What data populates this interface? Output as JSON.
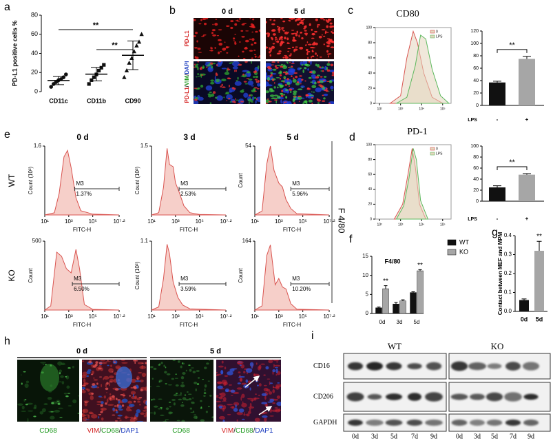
{
  "panel_labels": [
    "a",
    "b",
    "c",
    "d",
    "e",
    "f",
    "g",
    "h",
    "i"
  ],
  "panel_b": {
    "columns": [
      "0 d",
      "5 d"
    ],
    "rows": [
      [
        {
          "text": "PD-L1",
          "color": "#d42020"
        }
      ],
      [
        {
          "text": "PD-L1",
          "color": "#d42020"
        },
        {
          "text": "/",
          "color": "#222222"
        },
        {
          "text": "VIM",
          "color": "#1f9a1f"
        },
        {
          "text": "/",
          "color": "#222222"
        },
        {
          "text": "DAPI",
          "color": "#2040c0"
        }
      ]
    ]
  },
  "panel_e": {
    "columns": [
      "0 d",
      "3 d",
      "5 d"
    ],
    "rows": [
      "WT",
      "KO"
    ],
    "side_label": "F 4/80"
  },
  "panel_h": {
    "columns": [
      "0 d",
      "5 d"
    ],
    "image_labels": [
      [
        {
          "text": "CD68",
          "color": "#1f9a1f"
        }
      ],
      [
        {
          "text": "VIM",
          "color": "#d42020"
        },
        {
          "text": "/",
          "color": "#222222"
        },
        {
          "text": "CD68",
          "color": "#1f9a1f"
        },
        {
          "text": "/",
          "color": "#222222"
        },
        {
          "text": "DAP1",
          "color": "#2040c0"
        }
      ],
      [
        {
          "text": "CD68",
          "color": "#1f9a1f"
        }
      ],
      [
        {
          "text": "VIM",
          "color": "#d42020"
        },
        {
          "text": "/",
          "color": "#222222"
        },
        {
          "text": "CD68",
          "color": "#1f9a1f"
        },
        {
          "text": "/",
          "color": "#222222"
        },
        {
          "text": "DAP1",
          "color": "#2040c0"
        }
      ]
    ]
  },
  "panel_i": {
    "groups": [
      "WT",
      "KO"
    ],
    "rows": [
      "CD16",
      "CD206",
      "GAPDH"
    ],
    "lanes": [
      "0d",
      "3d",
      "5d",
      "7d",
      "9d",
      "0d",
      "3d",
      "5d",
      "7d",
      "9d"
    ]
  },
  "chart_data": [
    {
      "type": "scatter",
      "ylabel": "PD-L1 positive cells %",
      "categories": [
        "CD11c",
        "CD11b",
        "CD90"
      ],
      "markers": [
        "circle",
        "square",
        "triangle"
      ],
      "points": [
        [
          5,
          8,
          10,
          12,
          13,
          15,
          18
        ],
        [
          8,
          12,
          15,
          18,
          22,
          25,
          28
        ],
        [
          15,
          22,
          30,
          35,
          42,
          48,
          52,
          60
        ]
      ],
      "means": [
        11.6,
        18.3,
        38
      ],
      "errors": [
        4.3,
        7,
        15
      ],
      "ylim": [
        0,
        80
      ],
      "yticks": [
        0,
        20,
        40,
        60,
        80
      ],
      "annotations": [
        "**",
        "**"
      ]
    },
    {
      "type": "line",
      "title": "CD80",
      "series": [
        {
          "name": "0",
          "color": "#d9534f",
          "x": [
            2.5,
            3.0,
            3.3,
            3.6,
            3.8,
            4.1,
            4.5,
            5.0
          ],
          "values": [
            0,
            10,
            60,
            95,
            80,
            40,
            8,
            0
          ]
        },
        {
          "name": "LPS",
          "color": "#5cb85c",
          "x": [
            2.8,
            3.3,
            3.7,
            3.95,
            4.2,
            4.5,
            4.9,
            5.3
          ],
          "values": [
            0,
            8,
            50,
            90,
            85,
            45,
            10,
            0
          ]
        }
      ],
      "fill": "#e3d6bd",
      "legend": "upper right",
      "xlim": [
        1.8,
        5.4
      ],
      "xticks": [
        {
          "value": 2,
          "label": "10²"
        },
        {
          "value": 3,
          "label": "10³"
        },
        {
          "value": 4,
          "label": "10⁴"
        },
        {
          "value": 5,
          "label": "10⁵"
        }
      ],
      "ylim": [
        0,
        100
      ],
      "yticks": [
        0,
        20,
        40,
        60,
        80,
        100
      ]
    },
    {
      "type": "bar",
      "xlabel": "LPS",
      "categories": [
        "-",
        "+"
      ],
      "values": [
        37,
        75
      ],
      "errors": [
        2,
        4
      ],
      "colors": [
        "#111111",
        "#a6a6a6"
      ],
      "ylim": [
        0,
        120
      ],
      "yticks": [
        0,
        20,
        40,
        60,
        80,
        100,
        120
      ],
      "annotations": [
        "**"
      ]
    },
    {
      "type": "line",
      "title": "PD-1",
      "series": [
        {
          "name": "0",
          "color": "#d9534f",
          "x": [
            2.7,
            3.1,
            3.35,
            3.55,
            3.7,
            3.9,
            4.2
          ],
          "values": [
            0,
            20,
            60,
            95,
            70,
            20,
            0
          ]
        },
        {
          "name": "LPS",
          "color": "#5cb85c",
          "x": [
            2.8,
            3.15,
            3.4,
            3.6,
            3.75,
            3.95,
            4.3
          ],
          "values": [
            0,
            18,
            55,
            95,
            80,
            25,
            0
          ]
        }
      ],
      "fill": "#e3d6bd",
      "legend": "upper right",
      "xlim": [
        1.8,
        5.4
      ],
      "xticks": [
        {
          "value": 2,
          "label": "10²"
        },
        {
          "value": 3,
          "label": "10³"
        },
        {
          "value": 4,
          "label": "10⁴"
        },
        {
          "value": 5,
          "label": "10⁵"
        }
      ],
      "ylim": [
        0,
        100
      ],
      "yticks": [
        0,
        20,
        40,
        60,
        80,
        100
      ]
    },
    {
      "type": "bar",
      "xlabel": "LPS",
      "categories": [
        "-",
        "+"
      ],
      "values": [
        25,
        48
      ],
      "errors": [
        3,
        2
      ],
      "colors": [
        "#111111",
        "#a6a6a6"
      ],
      "ylim": [
        0,
        100
      ],
      "yticks": [
        0,
        20,
        40,
        60,
        80,
        100
      ],
      "annotations": [
        "**"
      ]
    },
    {
      "type": "area",
      "ylabel": "Count (10³)",
      "xlabel": "FITC-H",
      "color": "#d9534f",
      "fill": "#f6cfc9",
      "x": [
        1,
        1.8,
        2.2,
        2.6,
        2.9,
        3.2,
        3.6,
        4,
        5,
        7.2
      ],
      "values": [
        0,
        0.05,
        0.5,
        1.35,
        1.5,
        1.1,
        0.4,
        0.1,
        0.02,
        0
      ],
      "xlim": [
        1,
        7.2
      ],
      "xticks": [
        {
          "value": 1,
          "label": "10¹"
        },
        {
          "value": 3,
          "label": "10³"
        },
        {
          "value": 5,
          "label": "10⁵"
        },
        {
          "value": 7.2,
          "label": "10⁷·²"
        }
      ],
      "ylim": [
        0,
        1.6
      ],
      "yticks": [
        1.6
      ],
      "gate": {
        "name": "M3",
        "x": [
          3.5,
          7.2
        ],
        "label": "1.37%"
      }
    },
    {
      "type": "area",
      "ylabel": "Count (10³)",
      "xlabel": "FITC-H",
      "color": "#d9534f",
      "fill": "#f6cfc9",
      "x": [
        1,
        1.6,
        2,
        2.3,
        2.5,
        2.8,
        3,
        3.3,
        3.7,
        4.2,
        5,
        7.2
      ],
      "values": [
        0,
        0.05,
        0.6,
        1.45,
        1.1,
        1.05,
        0.7,
        0.5,
        0.2,
        0.05,
        0.01,
        0
      ],
      "xlim": [
        1,
        7.2
      ],
      "xticks": [
        {
          "value": 1,
          "label": "10¹"
        },
        {
          "value": 3,
          "label": "10³"
        },
        {
          "value": 5,
          "label": "10⁵"
        },
        {
          "value": 7.2,
          "label": "10⁷·²"
        }
      ],
      "ylim": [
        0,
        1.5
      ],
      "yticks": [
        1.5
      ],
      "gate": {
        "name": "M3",
        "x": [
          3.3,
          7.2
        ],
        "label": "2.53%"
      }
    },
    {
      "type": "area",
      "ylabel": "Count",
      "xlabel": "FITC-H",
      "color": "#d9534f",
      "fill": "#f6cfc9",
      "x": [
        1,
        1.6,
        2,
        2.3,
        2.6,
        3,
        3.3,
        3.6,
        4,
        4.5,
        7.2
      ],
      "values": [
        0,
        3,
        40,
        54,
        35,
        25,
        22,
        12,
        5,
        1,
        0
      ],
      "xlim": [
        1,
        7.2
      ],
      "xticks": [
        {
          "value": 1,
          "label": "10¹"
        },
        {
          "value": 3,
          "label": "10³"
        },
        {
          "value": 5,
          "label": "10⁵"
        },
        {
          "value": 7.2,
          "label": "10⁷·²"
        }
      ],
      "ylim": [
        0,
        54
      ],
      "yticks": [
        54
      ],
      "gate": {
        "name": "M3",
        "x": [
          4.0,
          7.2
        ],
        "label": "5.96%"
      }
    },
    {
      "type": "area",
      "ylabel": "Count",
      "xlabel": "FITC-H",
      "color": "#d9534f",
      "fill": "#f6cfc9",
      "x": [
        1,
        1.5,
        2,
        2.4,
        2.8,
        3.2,
        3.6,
        3.9,
        4.3,
        5,
        7.2
      ],
      "values": [
        0,
        30,
        420,
        390,
        300,
        270,
        440,
        300,
        40,
        5,
        0
      ],
      "xlim": [
        1,
        7.2
      ],
      "xticks": [
        {
          "value": 1,
          "label": "10¹"
        },
        {
          "value": 3,
          "label": "10³"
        },
        {
          "value": 5,
          "label": "10⁵"
        },
        {
          "value": 7.2,
          "label": "10⁷·²"
        }
      ],
      "ylim": [
        0,
        500
      ],
      "yticks": [
        500
      ],
      "gate": {
        "name": "M3",
        "x": [
          3.3,
          7.2
        ],
        "label": "6.50%"
      }
    },
    {
      "type": "area",
      "ylabel": "Count (10³)",
      "xlabel": "FITC-H",
      "color": "#d9534f",
      "fill": "#f6cfc9",
      "x": [
        1,
        1.6,
        2,
        2.3,
        2.5,
        2.8,
        3.2,
        3.6,
        4.2,
        7.2
      ],
      "values": [
        0,
        0.05,
        0.5,
        1.05,
        0.9,
        0.45,
        0.2,
        0.08,
        0.02,
        0
      ],
      "xlim": [
        1,
        7.2
      ],
      "xticks": [
        {
          "value": 1,
          "label": "10¹"
        },
        {
          "value": 3,
          "label": "10³"
        },
        {
          "value": 5,
          "label": "10⁵"
        },
        {
          "value": 7.2,
          "label": "10⁷·²"
        }
      ],
      "ylim": [
        0,
        1.1
      ],
      "yticks": [
        1.1
      ],
      "gate": {
        "name": "M3",
        "x": [
          3.3,
          7.2
        ],
        "label": "3.59%"
      }
    },
    {
      "type": "area",
      "ylabel": "Count",
      "xlabel": "FITC-H",
      "color": "#d9534f",
      "fill": "#f6cfc9",
      "x": [
        1,
        1.6,
        2,
        2.3,
        2.7,
        3,
        3.3,
        3.6,
        4,
        4.5,
        7.2
      ],
      "values": [
        0,
        10,
        130,
        155,
        60,
        75,
        55,
        50,
        15,
        2,
        0
      ],
      "xlim": [
        1,
        7.2
      ],
      "xticks": [
        {
          "value": 1,
          "label": "10¹"
        },
        {
          "value": 3,
          "label": "10³"
        },
        {
          "value": 5,
          "label": "10⁵"
        },
        {
          "value": 7.2,
          "label": "10⁷·²"
        }
      ],
      "ylim": [
        0,
        164
      ],
      "yticks": [
        164
      ],
      "gate": {
        "name": "M3",
        "x": [
          4.0,
          7.2
        ],
        "label": "10.20%"
      }
    },
    {
      "type": "grouped_bar",
      "title": "F4/80",
      "categories": [
        "0d",
        "3d",
        "5d"
      ],
      "series": [
        {
          "name": "WT",
          "color": "#111111",
          "values": [
            1.5,
            2.5,
            5.5
          ],
          "errors": [
            0.2,
            0.4,
            0.2
          ]
        },
        {
          "name": "KO",
          "color": "#a6a6a6",
          "values": [
            6.5,
            3.3,
            11.2
          ],
          "errors": [
            0.8,
            0.3,
            0.3
          ]
        }
      ],
      "ylim": [
        0,
        15
      ],
      "yticks": [
        0,
        5,
        10,
        15
      ],
      "annotations": [
        "**",
        "**"
      ]
    },
    {
      "type": "bar",
      "ylabel": "Contact between MEF and MPM",
      "categories": [
        "0d",
        "5d"
      ],
      "values": [
        0.06,
        0.32
      ],
      "errors": [
        0.006,
        0.05
      ],
      "colors": [
        "#111111",
        "#a6a6a6"
      ],
      "ylim": [
        0,
        0.4
      ],
      "yticks": [
        {
          "value": 0,
          "label": "0.0"
        },
        0.1,
        0.2,
        0.3,
        0.4
      ],
      "annotations": [
        "**"
      ]
    }
  ]
}
